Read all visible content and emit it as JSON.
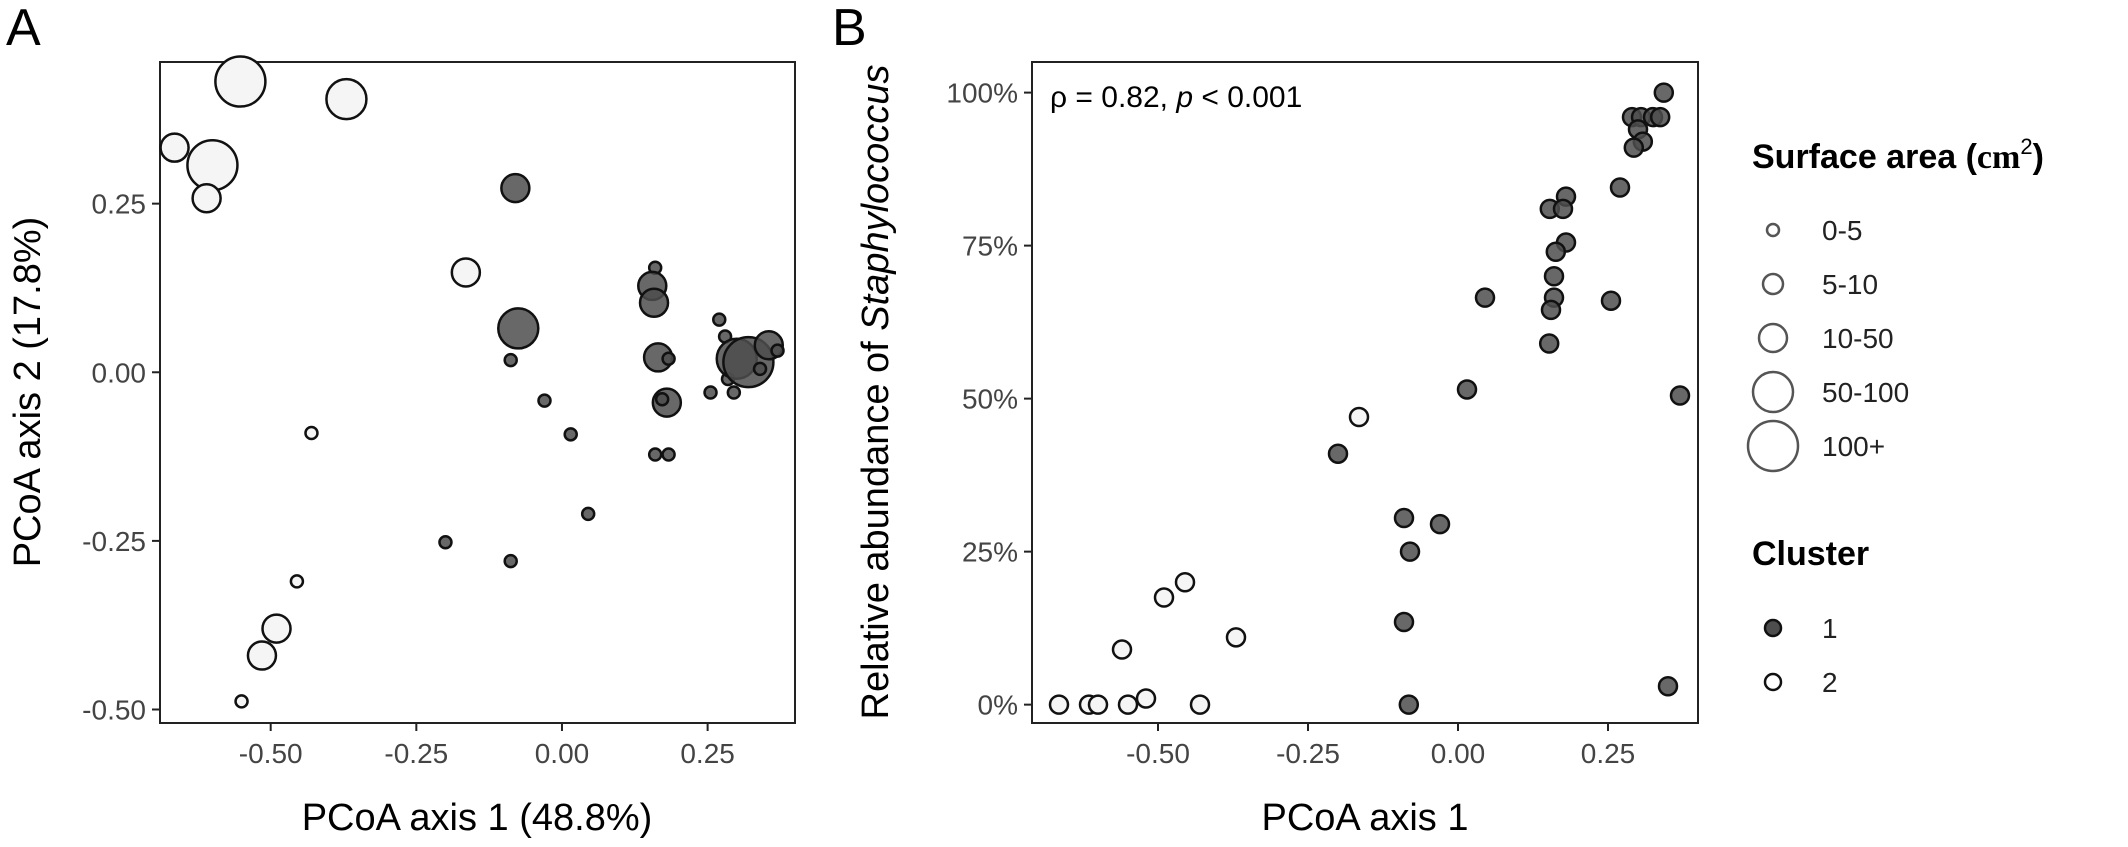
{
  "figure": {
    "panel_a_letter": "A",
    "panel_b_letter": "B"
  },
  "chart_data": [
    {
      "type": "scatter",
      "panel": "A",
      "xlabel": "PCoA axis 1 (48.8%)",
      "ylabel": "PCoA axis 2 (17.8%)",
      "xlim": [
        -0.69,
        0.4
      ],
      "ylim": [
        -0.52,
        0.46
      ],
      "xticks": [
        -0.5,
        -0.25,
        0.0,
        0.25
      ],
      "xtick_labels": [
        "-0.50",
        "-0.25",
        "0.00",
        "0.25"
      ],
      "yticks": [
        -0.5,
        -0.25,
        0.0,
        0.25
      ],
      "ytick_labels": [
        "-0.50",
        "-0.25",
        "0.00",
        "0.25"
      ],
      "grid": false,
      "points": [
        {
          "x": -0.552,
          "y": 0.431,
          "size": "100+",
          "cluster": "2"
        },
        {
          "x": -0.37,
          "y": 0.405,
          "size": "50-100",
          "cluster": "2"
        },
        {
          "x": -0.665,
          "y": 0.333,
          "size": "10-50",
          "cluster": "2"
        },
        {
          "x": -0.6,
          "y": 0.307,
          "size": "100+",
          "cluster": "2"
        },
        {
          "x": -0.61,
          "y": 0.258,
          "size": "10-50",
          "cluster": "2"
        },
        {
          "x": -0.165,
          "y": 0.148,
          "size": "10-50",
          "cluster": "2"
        },
        {
          "x": -0.43,
          "y": -0.09,
          "size": "0-5",
          "cluster": "2"
        },
        {
          "x": -0.455,
          "y": -0.31,
          "size": "0-5",
          "cluster": "2"
        },
        {
          "x": -0.49,
          "y": -0.38,
          "size": "10-50",
          "cluster": "2"
        },
        {
          "x": -0.515,
          "y": -0.42,
          "size": "10-50",
          "cluster": "2"
        },
        {
          "x": -0.55,
          "y": -0.488,
          "size": "0-5",
          "cluster": "2"
        },
        {
          "x": -0.08,
          "y": 0.273,
          "size": "10-50",
          "cluster": "1"
        },
        {
          "x": -0.075,
          "y": 0.065,
          "size": "50-100",
          "cluster": "1"
        },
        {
          "x": 0.16,
          "y": 0.155,
          "size": "0-5",
          "cluster": "1"
        },
        {
          "x": 0.155,
          "y": 0.128,
          "size": "10-50",
          "cluster": "1"
        },
        {
          "x": 0.158,
          "y": 0.103,
          "size": "10-50",
          "cluster": "1"
        },
        {
          "x": 0.165,
          "y": 0.022,
          "size": "10-50",
          "cluster": "1"
        },
        {
          "x": 0.18,
          "y": -0.045,
          "size": "10-50",
          "cluster": "1"
        },
        {
          "x": 0.172,
          "y": -0.04,
          "size": "0-5",
          "cluster": "1"
        },
        {
          "x": 0.183,
          "y": 0.02,
          "size": "0-5",
          "cluster": "1"
        },
        {
          "x": 0.16,
          "y": -0.122,
          "size": "0-5",
          "cluster": "1"
        },
        {
          "x": 0.183,
          "y": -0.122,
          "size": "0-5",
          "cluster": "1"
        },
        {
          "x": 0.27,
          "y": 0.078,
          "size": "0-5",
          "cluster": "1"
        },
        {
          "x": 0.28,
          "y": 0.053,
          "size": "0-5",
          "cluster": "1"
        },
        {
          "x": 0.255,
          "y": -0.03,
          "size": "0-5",
          "cluster": "1"
        },
        {
          "x": 0.285,
          "y": -0.01,
          "size": "0-5",
          "cluster": "1"
        },
        {
          "x": 0.295,
          "y": -0.03,
          "size": "0-5",
          "cluster": "1"
        },
        {
          "x": 0.3,
          "y": 0.02,
          "size": "50-100",
          "cluster": "1"
        },
        {
          "x": 0.32,
          "y": 0.015,
          "size": "100+",
          "cluster": "1"
        },
        {
          "x": 0.34,
          "y": 0.005,
          "size": "0-5",
          "cluster": "1"
        },
        {
          "x": 0.355,
          "y": 0.04,
          "size": "10-50",
          "cluster": "1"
        },
        {
          "x": 0.37,
          "y": 0.032,
          "size": "0-5",
          "cluster": "1"
        },
        {
          "x": -0.088,
          "y": 0.018,
          "size": "0-5",
          "cluster": "1"
        },
        {
          "x": -0.03,
          "y": -0.042,
          "size": "0-5",
          "cluster": "1"
        },
        {
          "x": 0.015,
          "y": -0.092,
          "size": "0-5",
          "cluster": "1"
        },
        {
          "x": 0.045,
          "y": -0.21,
          "size": "0-5",
          "cluster": "1"
        },
        {
          "x": -0.2,
          "y": -0.252,
          "size": "0-5",
          "cluster": "1"
        },
        {
          "x": -0.088,
          "y": -0.28,
          "size": "0-5",
          "cluster": "1"
        }
      ]
    },
    {
      "type": "scatter",
      "panel": "B",
      "xlabel": "PCoA axis 1",
      "ylabel_prefix": "Relative abundance of ",
      "ylabel_italic": "Staphylococcus",
      "xlim": [
        -0.71,
        0.4
      ],
      "ylim": [
        -3,
        105
      ],
      "xticks": [
        -0.5,
        -0.25,
        0.0,
        0.25
      ],
      "xtick_labels": [
        "-0.50",
        "-0.25",
        "0.00",
        "0.25"
      ],
      "yticks": [
        0,
        25,
        50,
        75,
        100
      ],
      "ytick_labels": [
        "0%",
        "25%",
        "50%",
        "75%",
        "100%"
      ],
      "grid": false,
      "annotation": {
        "rho_text": "ρ = 0.82, ",
        "p_symbol": "p",
        "p_text": " < 0.001"
      },
      "points": [
        {
          "x": 0.343,
          "y": 100,
          "cluster": "1"
        },
        {
          "x": 0.29,
          "y": 96,
          "cluster": "1"
        },
        {
          "x": 0.305,
          "y": 96,
          "cluster": "1"
        },
        {
          "x": 0.325,
          "y": 96,
          "cluster": "1"
        },
        {
          "x": 0.337,
          "y": 96,
          "cluster": "1"
        },
        {
          "x": 0.3,
          "y": 94,
          "cluster": "1"
        },
        {
          "x": 0.308,
          "y": 92,
          "cluster": "1"
        },
        {
          "x": 0.293,
          "y": 91,
          "cluster": "1"
        },
        {
          "x": 0.27,
          "y": 84.5,
          "cluster": "1"
        },
        {
          "x": 0.18,
          "y": 83,
          "cluster": "1"
        },
        {
          "x": 0.153,
          "y": 81,
          "cluster": "1"
        },
        {
          "x": 0.175,
          "y": 81,
          "cluster": "1"
        },
        {
          "x": 0.18,
          "y": 75.5,
          "cluster": "1"
        },
        {
          "x": 0.163,
          "y": 74,
          "cluster": "1"
        },
        {
          "x": 0.16,
          "y": 70,
          "cluster": "1"
        },
        {
          "x": 0.045,
          "y": 66.5,
          "cluster": "1"
        },
        {
          "x": 0.16,
          "y": 66.5,
          "cluster": "1"
        },
        {
          "x": 0.255,
          "y": 66,
          "cluster": "1"
        },
        {
          "x": 0.155,
          "y": 64.5,
          "cluster": "1"
        },
        {
          "x": 0.152,
          "y": 59,
          "cluster": "1"
        },
        {
          "x": 0.015,
          "y": 51.5,
          "cluster": "1"
        },
        {
          "x": 0.37,
          "y": 50.5,
          "cluster": "1"
        },
        {
          "x": -0.2,
          "y": 41,
          "cluster": "1"
        },
        {
          "x": -0.09,
          "y": 30.5,
          "cluster": "1"
        },
        {
          "x": -0.03,
          "y": 29.5,
          "cluster": "1"
        },
        {
          "x": -0.08,
          "y": 25,
          "cluster": "1"
        },
        {
          "x": -0.09,
          "y": 13.5,
          "cluster": "1"
        },
        {
          "x": 0.35,
          "y": 3,
          "cluster": "1"
        },
        {
          "x": -0.082,
          "y": 0,
          "cluster": "1"
        },
        {
          "x": -0.165,
          "y": 47,
          "cluster": "2"
        },
        {
          "x": -0.455,
          "y": 20,
          "cluster": "2"
        },
        {
          "x": -0.49,
          "y": 17.5,
          "cluster": "2"
        },
        {
          "x": -0.37,
          "y": 11,
          "cluster": "2"
        },
        {
          "x": -0.56,
          "y": 9,
          "cluster": "2"
        },
        {
          "x": -0.665,
          "y": 0,
          "cluster": "2"
        },
        {
          "x": -0.615,
          "y": 0,
          "cluster": "2"
        },
        {
          "x": -0.6,
          "y": 0,
          "cluster": "2"
        },
        {
          "x": -0.55,
          "y": 0,
          "cluster": "2"
        },
        {
          "x": -0.52,
          "y": 1,
          "cluster": "2"
        },
        {
          "x": -0.43,
          "y": 0,
          "cluster": "2"
        }
      ]
    }
  ],
  "legend": {
    "size_title_text": "Surface area",
    "size_title_unit": "cm",
    "size_title_superscript": "2",
    "size_title_open": "(",
    "size_title_close": ")",
    "size_items": [
      "0-5",
      "5-10",
      "10-50",
      "50-100",
      "100+"
    ],
    "cluster_title": "Cluster",
    "cluster_items": [
      "1",
      "2"
    ]
  },
  "colors": {
    "cluster_1_fill": "#4d4d4d",
    "cluster_2_fill": "#f5f5f5",
    "point_stroke": "#111111",
    "legend_stroke": "#555555"
  }
}
